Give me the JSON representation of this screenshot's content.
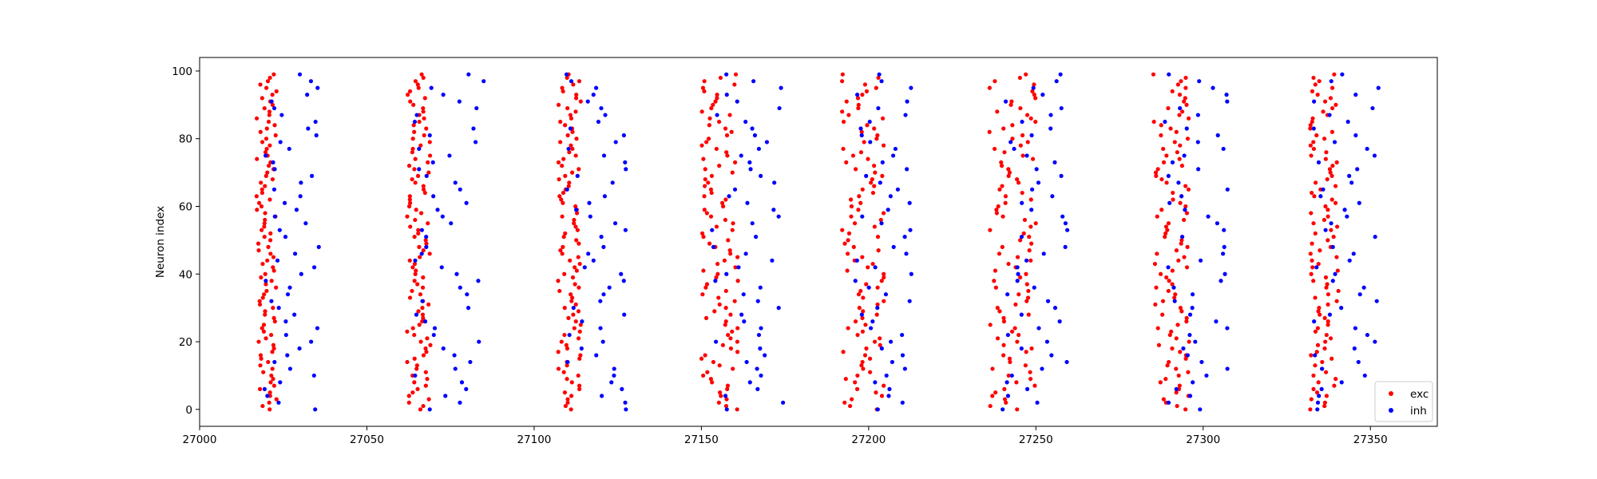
{
  "chart_data": {
    "type": "scatter",
    "title": "",
    "xlabel": "",
    "ylabel": "Neuron index",
    "xlim": [
      27000,
      27370
    ],
    "ylim": [
      -5,
      104
    ],
    "x_ticks": [
      27000,
      27050,
      27100,
      27150,
      27200,
      27250,
      27300,
      27350
    ],
    "y_ticks": [
      0,
      20,
      40,
      60,
      80,
      100
    ],
    "x_tick_labels": [
      "27000",
      "27050",
      "27100",
      "27150",
      "27200",
      "27250",
      "27300",
      "27350"
    ],
    "y_tick_labels": [
      "0",
      "20",
      "40",
      "60",
      "80",
      "100"
    ],
    "grid": false,
    "legend_position": "lower-right",
    "series": [
      {
        "name": "exc",
        "color": "#ff0000",
        "marker": "dot",
        "bursts": [
          {
            "x_min": 27017,
            "x_max": 27023
          },
          {
            "x_min": 27062,
            "x_max": 27069
          },
          {
            "x_min": 27107,
            "x_max": 27114
          },
          {
            "x_min": 27150,
            "x_max": 27161
          },
          {
            "x_min": 27192,
            "x_max": 27205
          },
          {
            "x_min": 27236,
            "x_max": 27250
          },
          {
            "x_min": 27285,
            "x_max": 27296
          },
          {
            "x_min": 27332,
            "x_max": 27341
          }
        ],
        "points_per_burst": 100
      },
      {
        "name": "inh",
        "color": "#0000ff",
        "marker": "dot",
        "bursts": [
          {
            "x_min": 27019,
            "x_max": 27036
          },
          {
            "x_min": 27064,
            "x_max": 27085
          },
          {
            "x_min": 27109,
            "x_max": 27128
          },
          {
            "x_min": 27153,
            "x_max": 27175
          },
          {
            "x_min": 27196,
            "x_max": 27214
          },
          {
            "x_min": 27240,
            "x_max": 27260
          },
          {
            "x_min": 27288,
            "x_max": 27308
          },
          {
            "x_min": 27333,
            "x_max": 27353
          }
        ],
        "points_per_burst": 50
      }
    ]
  }
}
